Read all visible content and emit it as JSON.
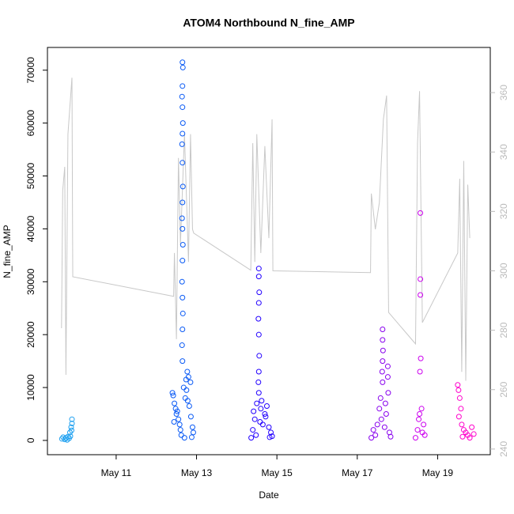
{
  "chart_data": {
    "type": "scatter",
    "title": "ATOM4 Northbound N_fine_AMP",
    "x_label": "Date",
    "y_label": "N_fine_AMP",
    "xlim": [
      9.29,
      20.31
    ],
    "xticks": [
      {
        "value": 11,
        "label": "May 11"
      },
      {
        "value": 13,
        "label": "May 13"
      },
      {
        "value": 15,
        "label": "May 15"
      },
      {
        "value": 17,
        "label": "May 17"
      },
      {
        "value": 19,
        "label": "May 19"
      }
    ],
    "ylim": [
      -2700,
      74300
    ],
    "yticks": [
      0,
      10000,
      20000,
      30000,
      40000,
      50000,
      60000,
      70000
    ],
    "y2lim": [
      238.1,
      375.2
    ],
    "y2ticks": [
      240,
      260,
      280,
      300,
      320,
      340,
      360
    ],
    "series": [
      {
        "color": "#c8c8c8",
        "axis": "y2",
        "x": [
          9.64,
          9.67,
          9.72,
          9.75,
          9.8,
          9.9,
          9.92,
          12.43,
          12.45,
          12.5,
          12.55,
          12.6,
          12.7,
          12.8,
          12.85,
          12.9,
          12.93,
          14.35,
          14.4,
          14.45,
          14.5,
          14.6,
          14.7,
          14.8,
          14.88,
          14.9,
          17.33,
          17.35,
          17.45,
          17.55,
          17.65,
          17.73,
          17.78,
          18.45,
          18.5,
          18.55,
          18.62,
          19.5,
          19.55,
          19.6,
          19.65,
          19.7,
          19.75,
          19.8
        ],
        "values": [
          280.7,
          327,
          335,
          265,
          346,
          365,
          298,
          291.4,
          306,
          277,
          338,
          309,
          346,
          303,
          346,
          314,
          312.7,
          300.2,
          343,
          303,
          346,
          306,
          342,
          311,
          351,
          300,
          299.4,
          326,
          314,
          323,
          351,
          359,
          286,
          275.4,
          343,
          360.5,
          282.6,
          306,
          331,
          266,
          337,
          263,
          329,
          311
        ]
      },
      {
        "color": "#1ea0f0",
        "x": [
          9.65,
          9.68,
          9.72,
          9.75,
          9.78,
          9.8,
          9.83,
          9.85,
          9.86,
          9.88,
          9.9,
          9.9,
          9.89
        ],
        "values": [
          300,
          600,
          200,
          500,
          100,
          700,
          400,
          1500,
          800,
          2500,
          3200,
          4000,
          1900
        ]
      },
      {
        "color": "#0a5af5",
        "x": [
          12.65,
          12.66,
          12.65,
          12.64,
          12.65,
          12.66,
          12.65,
          12.64,
          12.65,
          12.66,
          12.65,
          12.64,
          12.65,
          12.66,
          12.65,
          12.64,
          12.65,
          12.66,
          12.65,
          12.64,
          12.65,
          12.77,
          12.8,
          12.85,
          12.4,
          12.42,
          12.45,
          12.48,
          12.5,
          12.55,
          12.58,
          12.6,
          12.62,
          12.7,
          12.72,
          12.75,
          12.78,
          12.82,
          12.86,
          12.9,
          12.92,
          12.44,
          12.52,
          12.68,
          12.74,
          12.88
        ],
        "values": [
          71500,
          70500,
          67000,
          65000,
          63000,
          60000,
          58000,
          56000,
          52500,
          48000,
          45000,
          42000,
          40000,
          37000,
          34000,
          30000,
          27000,
          24000,
          21000,
          18000,
          15000,
          13000,
          12000,
          11000,
          9000,
          8500,
          7000,
          6000,
          5000,
          4000,
          3000,
          2000,
          1000,
          500,
          8000,
          9500,
          7500,
          6500,
          4500,
          2500,
          1500,
          3500,
          5500,
          10000,
          11500,
          600
        ]
      },
      {
        "color": "#2200ff",
        "x": [
          14.55,
          14.55,
          14.56,
          14.55,
          14.54,
          14.55,
          14.56,
          14.55,
          14.54,
          14.55,
          14.36,
          14.4,
          14.45,
          14.5,
          14.6,
          14.65,
          14.7,
          14.75,
          14.8,
          14.85,
          14.88,
          14.42,
          14.48,
          14.58,
          14.62,
          14.72,
          14.82
        ],
        "values": [
          32500,
          31000,
          28000,
          26000,
          23000,
          20000,
          16000,
          13000,
          11000,
          9000,
          500,
          2000,
          4000,
          7000,
          6000,
          3000,
          5000,
          6500,
          2500,
          1500,
          800,
          5500,
          1000,
          3500,
          7500,
          4500,
          600
        ]
      },
      {
        "color": "#8800ee",
        "x": [
          17.63,
          17.63,
          17.64,
          17.63,
          17.62,
          17.63,
          17.76,
          17.76,
          17.77,
          17.35,
          17.4,
          17.45,
          17.5,
          17.55,
          17.6,
          17.68,
          17.72,
          17.8,
          17.83,
          17.58,
          17.7
        ],
        "values": [
          21000,
          19000,
          17000,
          15000,
          13000,
          11000,
          14000,
          12000,
          9000,
          500,
          2000,
          1000,
          3000,
          6000,
          4000,
          2500,
          5000,
          1500,
          700,
          8000,
          7000
        ]
      },
      {
        "color": "#cc00ee",
        "x": [
          18.57,
          18.57,
          18.57,
          18.58,
          18.56,
          18.45,
          18.5,
          18.53,
          18.6,
          18.65,
          18.68,
          18.55,
          18.62
        ],
        "values": [
          43000,
          30500,
          27500,
          15500,
          13000,
          500,
          2000,
          4000,
          6000,
          3000,
          1000,
          5000,
          1500
        ]
      },
      {
        "color": "#ff00cc",
        "x": [
          19.5,
          19.52,
          19.55,
          19.58,
          19.6,
          19.65,
          19.7,
          19.75,
          19.8,
          19.85,
          19.9,
          19.53,
          19.62
        ],
        "values": [
          10500,
          9500,
          8000,
          6000,
          3000,
          2000,
          1500,
          1000,
          500,
          2500,
          1200,
          4500,
          700
        ]
      }
    ]
  }
}
